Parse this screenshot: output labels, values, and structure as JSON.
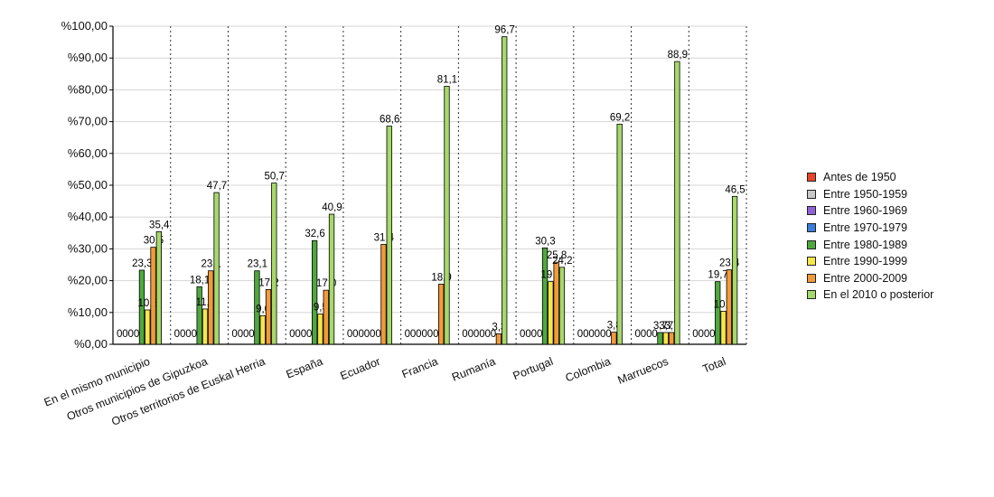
{
  "chart_data": {
    "type": "bar",
    "ylim": [
      0,
      100
    ],
    "yticks": [
      "%0,00",
      "%10,00",
      "%20,00",
      "%30,00",
      "%40,00",
      "%50,00",
      "%60,00",
      "%70,00",
      "%80,00",
      "%90,00",
      "%100,00"
    ],
    "grid": true,
    "legend_position": "right",
    "categories": [
      "En el mismo municipio",
      "Otros municipios de Gipuzkoa",
      "Otros territorios de Euskal Herria",
      "España",
      "Ecuador",
      "Francia",
      "Rumanía",
      "Portugal",
      "Colombia",
      "Marruecos",
      "Total"
    ],
    "series": [
      {
        "name": "Antes de 1950",
        "color": "#e8442a",
        "values": [
          0,
          0,
          0,
          0,
          0,
          0,
          0,
          0,
          0,
          0,
          0
        ]
      },
      {
        "name": "Entre 1950-1959",
        "color": "#c8c8c8",
        "values": [
          0,
          0,
          0,
          0,
          0,
          0,
          0,
          0,
          0,
          0,
          0
        ]
      },
      {
        "name": "Entre 1960-1969",
        "color": "#8e63d4",
        "values": [
          0,
          0,
          0,
          0,
          0,
          0,
          0,
          0,
          0,
          0,
          0
        ]
      },
      {
        "name": "Entre 1970-1979",
        "color": "#3a7fd9",
        "values": [
          0,
          0,
          0,
          0,
          0,
          0,
          0,
          0,
          0,
          0,
          0
        ]
      },
      {
        "name": "Entre 1980-1989",
        "color": "#4fa83d",
        "values": [
          23.3,
          18.1,
          23.1,
          32.6,
          0,
          0,
          0,
          30.3,
          0,
          3.7,
          19.7
        ]
      },
      {
        "name": "Entre 1990-1999",
        "color": "#f5e64a",
        "values": [
          10.8,
          11.1,
          9.0,
          9.5,
          0,
          0,
          0,
          19.7,
          0,
          3.7,
          10.4
        ]
      },
      {
        "name": "Entre 2000-2009",
        "color": "#f29a3a",
        "values": [
          30.5,
          23.1,
          17.2,
          17.0,
          31.4,
          18.9,
          3.3,
          25.8,
          3.8,
          3.7,
          23.4
        ]
      },
      {
        "name": "En el 2010 o posterior",
        "color": "#a6d86a",
        "values": [
          35.4,
          47.7,
          50.7,
          40.9,
          68.6,
          81.1,
          96.7,
          24.2,
          69.2,
          88.9,
          46.5
        ]
      }
    ]
  }
}
